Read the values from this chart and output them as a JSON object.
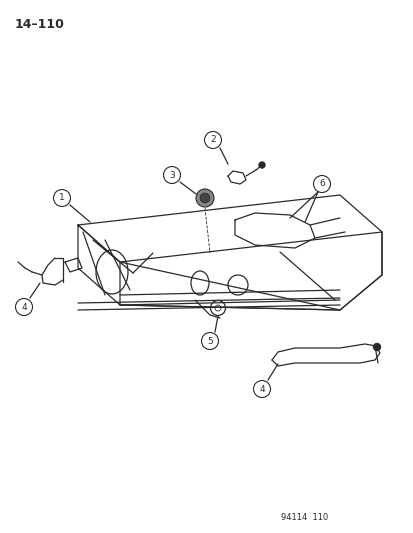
{
  "title": "14–110",
  "footer": "94114  110",
  "background_color": "#ffffff",
  "line_color": "#2a2a2a"
}
